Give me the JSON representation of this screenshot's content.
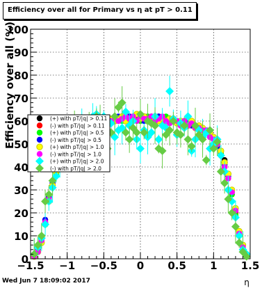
{
  "title": "Efficiency over all for Primary vs  η at pT > 0.11",
  "footer": "Wed Jun  7 18:09:02 2017",
  "chart_data": {
    "type": "scatter",
    "title": "Efficiency over all for Primary vs  η at pT > 0.11",
    "xlabel": "η",
    "ylabel": "Efficiency over all (%)",
    "xlim": [
      -1.5,
      1.5
    ],
    "ylim": [
      0,
      100
    ],
    "xticks": [
      -1.5,
      -1,
      -0.5,
      0,
      0.5,
      1,
      1.5
    ],
    "yticks": [
      0,
      10,
      20,
      30,
      40,
      50,
      60,
      70,
      80,
      90,
      100
    ],
    "grid": true,
    "legend_position": "left",
    "x": [
      -1.45,
      -1.4,
      -1.35,
      -1.3,
      -1.25,
      -1.2,
      -1.15,
      -1.1,
      -1.05,
      -1.0,
      -0.95,
      -0.9,
      -0.85,
      -0.8,
      -0.75,
      -0.7,
      -0.65,
      -0.6,
      -0.55,
      -0.5,
      -0.45,
      -0.4,
      -0.35,
      -0.3,
      -0.25,
      -0.2,
      -0.15,
      -0.1,
      -0.05,
      0.0,
      0.05,
      0.1,
      0.15,
      0.2,
      0.25,
      0.3,
      0.35,
      0.4,
      0.45,
      0.5,
      0.55,
      0.6,
      0.65,
      0.7,
      0.75,
      0.8,
      0.85,
      0.9,
      0.95,
      1.0,
      1.05,
      1.1,
      1.15,
      1.2,
      1.25,
      1.3,
      1.35,
      1.4,
      1.45
    ],
    "series": [
      {
        "name": "(+) with p_{T}/|q| > 0.11",
        "color": "#000000",
        "shape": "circle",
        "values": [
          1,
          3,
          8,
          16,
          27,
          33,
          38,
          44,
          48,
          52,
          54,
          55,
          56,
          57,
          58,
          58,
          59,
          59,
          60,
          60,
          60,
          60,
          61,
          61,
          61,
          61,
          62,
          62,
          62,
          61,
          61,
          61,
          61,
          62,
          62,
          61,
          61,
          61,
          60,
          60,
          60,
          60,
          59,
          59,
          58,
          58,
          57,
          56,
          55,
          53,
          51,
          47,
          43,
          37,
          30,
          22,
          12,
          6,
          2
        ]
      },
      {
        "name": "(-) with p_{T}/|q| > 0.11",
        "color": "#ff0000",
        "shape": "circle",
        "values": [
          1,
          4,
          9,
          17,
          26,
          32,
          40,
          45,
          50,
          53,
          55,
          56,
          57,
          58,
          58,
          58,
          59,
          59,
          60,
          60,
          60,
          61,
          61,
          61,
          61,
          62,
          62,
          62,
          61,
          61,
          61,
          62,
          62,
          62,
          61,
          61,
          61,
          60,
          60,
          60,
          60,
          59,
          59,
          59,
          58,
          57,
          56,
          55,
          54,
          52,
          50,
          46,
          40,
          35,
          28,
          20,
          11,
          5,
          2
        ]
      },
      {
        "name": "(+) with p_{T}/|q| > 0.5",
        "color": "#00ff00",
        "shape": "circle",
        "values": [
          1,
          3,
          8,
          16,
          25,
          31,
          37,
          43,
          49,
          52,
          54,
          55,
          56,
          58,
          58,
          59,
          59,
          58,
          60,
          61,
          59,
          60,
          62,
          61,
          60,
          61,
          60,
          62,
          61,
          60,
          61,
          62,
          60,
          61,
          61,
          60,
          62,
          60,
          61,
          60,
          59,
          60,
          58,
          59,
          58,
          58,
          56,
          56,
          54,
          52,
          50,
          46,
          41,
          36,
          28,
          19,
          10,
          5,
          2
        ]
      },
      {
        "name": "(-) with p_{T}/|q| > 0.5",
        "color": "#0000ff",
        "shape": "circle",
        "values": [
          1,
          4,
          9,
          17,
          27,
          33,
          39,
          44,
          49,
          53,
          55,
          56,
          57,
          57,
          58,
          59,
          59,
          60,
          60,
          59,
          61,
          61,
          60,
          62,
          61,
          61,
          62,
          61,
          62,
          62,
          60,
          61,
          62,
          61,
          62,
          61,
          60,
          61,
          60,
          60,
          59,
          60,
          59,
          58,
          58,
          57,
          57,
          55,
          54,
          52,
          49,
          45,
          41,
          36,
          29,
          21,
          11,
          6,
          2
        ]
      },
      {
        "name": "(+) with p_{T}/|q| > 1.0",
        "color": "#ffff00",
        "shape": "circle",
        "values": [
          1,
          3,
          7,
          15,
          25,
          32,
          38,
          44,
          47,
          51,
          54,
          55,
          57,
          56,
          58,
          58,
          60,
          59,
          61,
          59,
          60,
          61,
          60,
          61,
          62,
          60,
          61,
          61,
          63,
          61,
          62,
          60,
          61,
          62,
          60,
          61,
          60,
          61,
          61,
          59,
          60,
          59,
          58,
          60,
          57,
          58,
          57,
          55,
          55,
          53,
          50,
          47,
          42,
          37,
          30,
          22,
          12,
          6,
          2
        ]
      },
      {
        "name": "(-) with p_{T}/|q| > 1.0",
        "color": "#ff00ff",
        "shape": "circle",
        "values": [
          1,
          3,
          8,
          16,
          26,
          31,
          39,
          43,
          48,
          52,
          53,
          56,
          55,
          57,
          59,
          58,
          58,
          60,
          59,
          61,
          60,
          60,
          62,
          60,
          61,
          62,
          61,
          62,
          60,
          62,
          61,
          61,
          62,
          60,
          61,
          62,
          60,
          59,
          61,
          60,
          58,
          60,
          58,
          59,
          57,
          57,
          56,
          56,
          53,
          52,
          50,
          45,
          40,
          35,
          29,
          21,
          11,
          5,
          2
        ]
      },
      {
        "name": "(+) with p_{T}/|q| > 2.0",
        "color": "#00ffff",
        "shape": "diamond",
        "values": [
          2,
          5,
          9,
          15,
          25,
          31,
          36,
          43,
          46,
          50,
          48,
          53,
          55,
          59,
          57,
          54,
          62,
          63,
          58,
          62,
          55,
          59,
          53,
          56,
          57,
          64,
          58,
          60,
          52,
          48,
          56,
          53,
          55,
          62,
          52,
          58,
          57,
          73,
          61,
          54,
          59,
          57,
          62,
          47,
          52,
          56,
          53,
          55,
          48,
          50,
          52,
          45,
          38,
          30,
          25,
          18,
          10,
          4,
          2
        ]
      },
      {
        "name": "(-) with p_{T}/|q| > 2.0",
        "color": "#66cc44",
        "shape": "diamond",
        "values": [
          2,
          6,
          10,
          25,
          28,
          34,
          42,
          51,
          47,
          48,
          52,
          57,
          53,
          55,
          57,
          59,
          52,
          62,
          60,
          57,
          48,
          55,
          62,
          66,
          68,
          55,
          52,
          57,
          55,
          63,
          55,
          60,
          59,
          58,
          48,
          47,
          54,
          56,
          60,
          55,
          54,
          58,
          52,
          49,
          58,
          54,
          52,
          43,
          56,
          48,
          51,
          38,
          33,
          26,
          20,
          14,
          7,
          3,
          1
        ]
      }
    ]
  }
}
